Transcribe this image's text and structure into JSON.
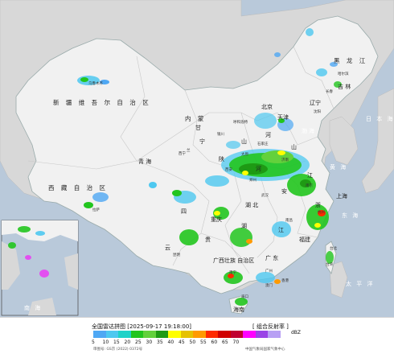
{
  "map": {
    "regions": {
      "xinjiang": "新 疆 维 吾 尔 自 治 区",
      "tibet": "西 藏 自 治 区",
      "qinghai": "青 海",
      "gansu": "甘",
      "ningxia": "宁",
      "sichuan": "四",
      "chongqing": "重庆",
      "hubei": "湖 北",
      "hunan": "湖",
      "guizhou": "贵",
      "yunnan": "云",
      "guangxi": "广西壮族\n自治区",
      "guangdong": "广 东",
      "hainan": "海南",
      "jiangxi": "江",
      "fujian": "福建",
      "zhejiang": "浙",
      "shanghai": "上海",
      "jiangsu": "江",
      "anhui": "安",
      "henan": "河",
      "shandong": "山",
      "shanxi": "山",
      "shaanxi": "陕",
      "hebei": "河",
      "beijing": "北京",
      "tianjin": "天津",
      "inner_mongolia": "内 蒙",
      "liaoning": "辽宁",
      "jilin": "吉 林",
      "heilongjiang": "黑 龙 江",
      "harbin": "哈尔滨",
      "changchun": "长春",
      "shenyang": "沈阳",
      "hohhot": "呼和浩特",
      "xining": "西宁",
      "lanzhou": "兰",
      "xian": "西安",
      "wuhan": "武汉",
      "nanjing": "南京",
      "hangzhou": "杭州",
      "nanchang": "南昌",
      "taipei": "台北",
      "taiwan": "台湾",
      "hongkong": "香港",
      "macau": "澳门",
      "guangzhou": "广州",
      "nanning": "南宁",
      "haikou": "海口",
      "kunming": "昆明",
      "lhasa": "拉萨",
      "urumqi": "乌鲁木齐",
      "yinchuan": "银川",
      "jinan": "济南",
      "zhengzhou": "郑州",
      "taiyuan": "太原",
      "shijiazhuang": "石家庄"
    },
    "seas": {
      "bohai": "渤海",
      "huanghai": "黄 海",
      "donghai": "东 海",
      "taipingyang": "太 平 洋",
      "riben": "日 本 海"
    },
    "inset": {
      "nanhai": "南 海"
    }
  },
  "legend": {
    "title": "全国雷达拼图 [2025-09-17 19:18:00]",
    "product": "[ 组合反射率 ]",
    "unit": "dBZ",
    "scale_values": [
      "5",
      "10",
      "15",
      "20",
      "25",
      "30",
      "35",
      "40",
      "45",
      "50",
      "55",
      "60",
      "65",
      "70"
    ],
    "scale_colors": [
      "#4fa8f4",
      "#4ec8f0",
      "#1fd2c8",
      "#22c51e",
      "#63d13c",
      "#1e9a14",
      "#ffff00",
      "#e6c200",
      "#ff9a00",
      "#ff2a00",
      "#d00000",
      "#c00030",
      "#ff00ff",
      "#9a44e6",
      "#b8a0f4"
    ],
    "approval": "审图号: GS京 (2022) 0372号",
    "publisher": "中国气象局国家气象中心"
  }
}
